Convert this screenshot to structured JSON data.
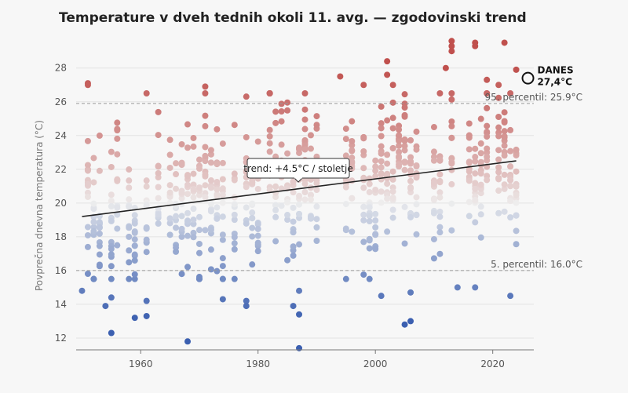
{
  "chart_data": {
    "type": "scatter",
    "title": "Temperature v dveh tednih okoli 11. avg. — zgodovinski trend",
    "ylabel": "Povprečna dnevna temperatura (°C)",
    "xlabel": "",
    "xlim": [
      1949,
      2027
    ],
    "ylim": [
      11.3,
      29.8
    ],
    "x_ticks": [
      1960,
      1980,
      2000,
      2020
    ],
    "y_ticks": [
      12,
      14,
      16,
      18,
      20,
      22,
      24,
      26,
      28
    ],
    "grid": true,
    "color_scale": {
      "low_color": "#3b5fb0",
      "mid_color": "#eeeeee",
      "high_color": "#c0504d",
      "center": 20
    },
    "reference_lines": [
      {
        "label": "95. percentil: 25.9°C",
        "y": 25.9
      },
      {
        "label": "5. percentil: 16.0°C",
        "y": 16.0
      }
    ],
    "trend": {
      "label": "trend: +4.5°C / stoletje",
      "x": [
        1950,
        2024
      ],
      "y": [
        19.2,
        22.5
      ]
    },
    "today": {
      "label_line1": "DANES",
      "label_line2": "27,4°C",
      "x": 2026,
      "y": 27.4
    },
    "extreme_points": [
      {
        "x": 1950,
        "y": 14.8
      },
      {
        "x": 1951,
        "y": 27.1
      },
      {
        "x": 1951,
        "y": 27.0
      },
      {
        "x": 1954,
        "y": 13.9
      },
      {
        "x": 1955,
        "y": 14.4
      },
      {
        "x": 1955,
        "y": 12.3
      },
      {
        "x": 1959,
        "y": 13.2
      },
      {
        "x": 1961,
        "y": 13.3
      },
      {
        "x": 1961,
        "y": 14.2
      },
      {
        "x": 1968,
        "y": 11.8
      },
      {
        "x": 1971,
        "y": 26.9
      },
      {
        "x": 1974,
        "y": 14.3
      },
      {
        "x": 1978,
        "y": 14.2
      },
      {
        "x": 1978,
        "y": 13.9
      },
      {
        "x": 1986,
        "y": 13.9
      },
      {
        "x": 1987,
        "y": 14.8
      },
      {
        "x": 1987,
        "y": 13.4
      },
      {
        "x": 1987,
        "y": 11.4
      },
      {
        "x": 1988,
        "y": 26.5
      },
      {
        "x": 1994,
        "y": 27.5
      },
      {
        "x": 1998,
        "y": 27.0
      },
      {
        "x": 2001,
        "y": 14.5
      },
      {
        "x": 2002,
        "y": 28.4
      },
      {
        "x": 2002,
        "y": 27.6
      },
      {
        "x": 2003,
        "y": 27.0
      },
      {
        "x": 2005,
        "y": 12.8
      },
      {
        "x": 2006,
        "y": 13.0
      },
      {
        "x": 2006,
        "y": 14.7
      },
      {
        "x": 2012,
        "y": 28.0
      },
      {
        "x": 2013,
        "y": 29.6
      },
      {
        "x": 2013,
        "y": 29.3
      },
      {
        "x": 2013,
        "y": 29.0
      },
      {
        "x": 2014,
        "y": 15.0
      },
      {
        "x": 2017,
        "y": 29.5
      },
      {
        "x": 2017,
        "y": 29.3
      },
      {
        "x": 2017,
        "y": 15.0
      },
      {
        "x": 2019,
        "y": 27.3
      },
      {
        "x": 2021,
        "y": 27.0
      },
      {
        "x": 2022,
        "y": 29.5
      },
      {
        "x": 2023,
        "y": 14.5
      },
      {
        "x": 2024,
        "y": 27.9
      }
    ],
    "seasonal_points": {
      "start_year": 1950,
      "end_year": 2024,
      "per_year": 14,
      "description": "Two-week daily mean temperatures per year; values spread around the trend line with std ~2.4 °C."
    }
  }
}
